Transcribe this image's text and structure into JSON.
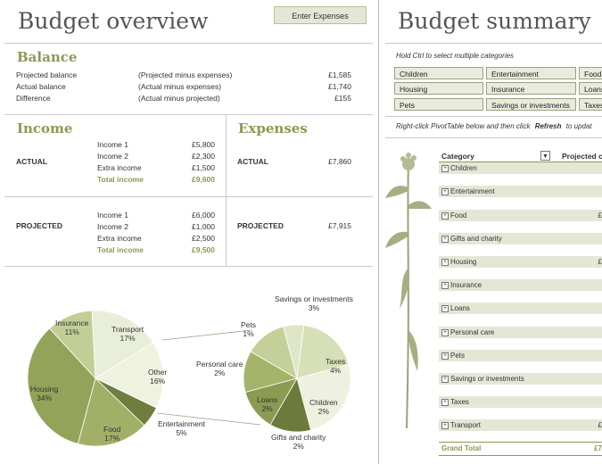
{
  "left": {
    "title": "Budget overview",
    "enter_button": "Enter Expenses",
    "balance": {
      "heading": "Balance",
      "rows": [
        {
          "label": "Projected balance",
          "note": "(Projected minus expenses)",
          "value": "£1,585"
        },
        {
          "label": "Actual balance",
          "note": "(Actual minus expenses)",
          "value": "£1,740"
        },
        {
          "label": "Difference",
          "note": "(Actual minus projected)",
          "value": "£155"
        }
      ]
    },
    "income": {
      "heading": "Income",
      "actual_label": "ACTUAL",
      "actual": [
        {
          "label": "Income 1",
          "value": "£5,800"
        },
        {
          "label": "Income 2",
          "value": "£2,300"
        },
        {
          "label": "Extra income",
          "value": "£1,500"
        }
      ],
      "actual_total": {
        "label": "Total income",
        "value": "£9,600"
      },
      "projected_label": "PROJECTED",
      "projected": [
        {
          "label": "Income 1",
          "value": "£6,000"
        },
        {
          "label": "Income 2",
          "value": "£1,000"
        },
        {
          "label": "Extra income",
          "value": "£2,500"
        }
      ],
      "projected_total": {
        "label": "Total income",
        "value": "£9,500"
      }
    },
    "expenses": {
      "heading": "Expenses",
      "actual_label": "ACTUAL",
      "actual_value": "£7,860",
      "projected_label": "PROJECTED",
      "projected_value": "£7,915"
    }
  },
  "chart_data": [
    {
      "type": "pie",
      "title": "",
      "slices": [
        {
          "label": "Transport",
          "pct": "17%",
          "value": 17
        },
        {
          "label": "Other",
          "pct": "16%",
          "value": 16
        },
        {
          "label": "Entertainment",
          "pct": "5%",
          "value": 5
        },
        {
          "label": "Food",
          "pct": "17%",
          "value": 17
        },
        {
          "label": "Housing",
          "pct": "34%",
          "value": 34
        },
        {
          "label": "Insurance",
          "pct": "11%",
          "value": 11
        }
      ]
    },
    {
      "type": "pie",
      "title": "",
      "slices": [
        {
          "label": "Pets",
          "pct": "1%",
          "value": 1
        },
        {
          "label": "Savings or investments",
          "pct": "3%",
          "value": 3
        },
        {
          "label": "Taxes",
          "pct": "4%",
          "value": 4
        },
        {
          "label": "Children",
          "pct": "2%",
          "value": 2
        },
        {
          "label": "Gifts and charity",
          "pct": "2%",
          "value": 2
        },
        {
          "label": "Loans",
          "pct": "2%",
          "value": 2
        },
        {
          "label": "Personal care",
          "pct": "2%",
          "value": 2
        }
      ]
    }
  ],
  "right": {
    "title": "Budget summary",
    "hint": "Hold Ctrl to select multiple categories",
    "slicers": [
      "Children",
      "Entertainment",
      "Food",
      "Housing",
      "Insurance",
      "Loans",
      "Pets",
      "Savings or investments",
      "Taxes"
    ],
    "refresh_hint_pre": "Right-click PivotTable below and then click",
    "refresh_hint_bold": "Refresh",
    "refresh_hint_post": "to updat",
    "pivot": {
      "col1": "Category",
      "col2": "Projected c",
      "rows": [
        {
          "label": "Children",
          "value": ""
        },
        {
          "label": "Entertainment",
          "value": ""
        },
        {
          "label": "Food",
          "value": "£"
        },
        {
          "label": "Gifts and charity",
          "value": ""
        },
        {
          "label": "Housing",
          "value": "£"
        },
        {
          "label": "Insurance",
          "value": ""
        },
        {
          "label": "Loans",
          "value": ""
        },
        {
          "label": "Personal care",
          "value": ""
        },
        {
          "label": "Pets",
          "value": ""
        },
        {
          "label": "Savings or investments",
          "value": ""
        },
        {
          "label": "Taxes",
          "value": ""
        },
        {
          "label": "Transport",
          "value": "£"
        }
      ],
      "grand_total": "Grand Total",
      "grand_total_value": "£7"
    }
  }
}
